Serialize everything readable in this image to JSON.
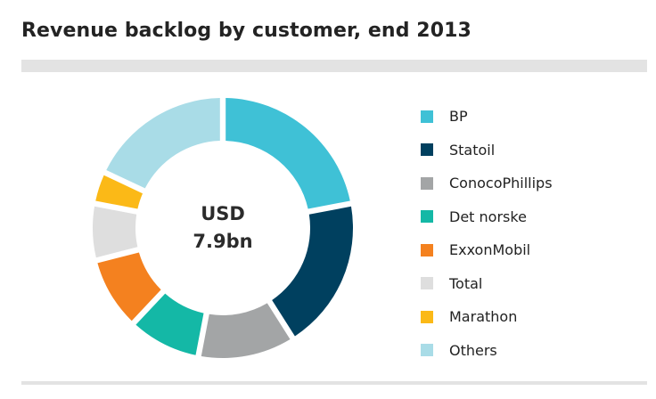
{
  "chart_data": {
    "type": "pie",
    "title": "Revenue backlog by customer, end 2013",
    "center_label": [
      "USD",
      "7.9bn"
    ],
    "categories": [
      "BP",
      "Statoil",
      "ConocoPhillips",
      "Det norske",
      "ExxonMobil",
      "Total",
      "Marathon",
      "Others"
    ],
    "values": [
      22,
      19,
      12,
      9,
      9,
      7,
      4,
      18
    ],
    "colors": [
      "#3fc1d6",
      "#00405f",
      "#a3a5a6",
      "#14b8a6",
      "#f4811f",
      "#dedede",
      "#fbb917",
      "#a9dce7"
    ],
    "legend_position": "right"
  }
}
